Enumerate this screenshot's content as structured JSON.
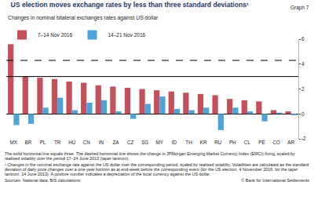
{
  "chart_data": {
    "type": "bar",
    "title": "US election moves exchange rates by less than three standard deviations¹",
    "graph_label": "Graph 7",
    "subtitle": "Changes in nominal bilateral exchanges rates against US dollar",
    "categories": [
      "MX",
      "BR",
      "PL",
      "TR",
      "HU",
      "CN",
      "IN",
      "ZA",
      "CZ",
      "SG",
      "MY",
      "ID",
      "TH",
      "KR",
      "RU",
      "PH",
      "CL",
      "PE",
      "CO",
      "AR"
    ],
    "series": [
      {
        "name": "7–14 Nov 2016",
        "color": "#c4505c",
        "values": [
          5.6,
          3.0,
          2.9,
          2.8,
          2.6,
          2.5,
          2.3,
          2.2,
          2.1,
          2.0,
          1.9,
          1.8,
          1.7,
          1.6,
          1.5,
          1.2,
          1.1,
          1.0,
          0.3,
          0.2
        ]
      },
      {
        "name": "14–21 Nov 2016",
        "color": "#4ea4d9",
        "values": [
          -0.9,
          -0.8,
          0.5,
          1.3,
          0.3,
          0.9,
          1.1,
          0.2,
          -0.4,
          0.8,
          1.4,
          0.4,
          0.3,
          0.5,
          -1.3,
          0.5,
          0.2,
          -0.6,
          0.1,
          -0.1
        ]
      }
    ],
    "reference_lines": [
      {
        "value": 3,
        "line_style": "solid",
        "color": "#000000"
      },
      {
        "value": 4.3,
        "line_style": "dashed",
        "color": "#000000"
      }
    ],
    "ylim": [
      -2,
      6
    ],
    "yticks": [
      -2,
      0,
      2,
      4,
      6
    ],
    "grid": false,
    "legend": "top left",
    "notes": [
      "The solid horizontal line equals three. The dashed horizontal line shows the change in JPMorgan Emerging Market Currency Index (EMCI) fixing, scaled by realised volatility over the period 17–24 June 2013 (taper tantrum).",
      "¹ Changes in the nominal exchange rate against the US dollar over the corresponding period, scaled by realised volatility. Volatilities are calculated as the standard deviation of daily price changes over a one-year horizon as at end-week before the corresponding event (for the US election, 4 November 2016; for the taper tantrum, 14 June 2013). A positive number indicates a depreciation of the local currency against the US dollar."
    ],
    "source": "Sources: National data; BIS calculations.",
    "copyright": "© Bank for International Settlements"
  }
}
